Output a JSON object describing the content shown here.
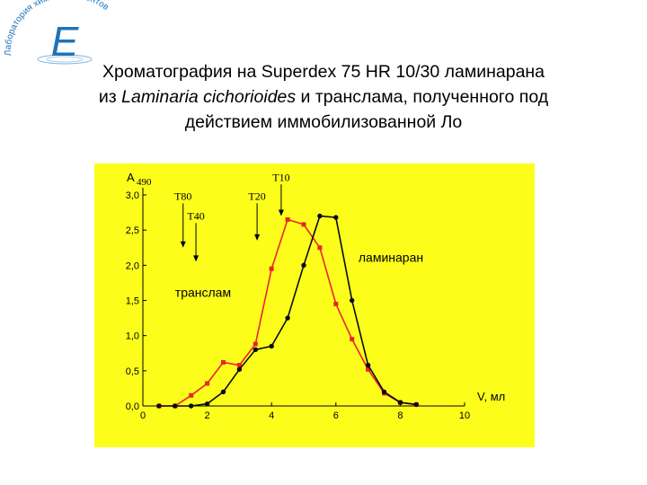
{
  "logo": {
    "text": "Лаборатория химии ферментов",
    "letter": "E",
    "accent": "#1e73b8"
  },
  "title": {
    "line1": "Хроматография  на  Superdex 75 HR 10/30 ламинарана",
    "line2_pre": "из ",
    "line2_italic": "Laminaria cichorioides",
    "line2_post": " и транслама, полученного под",
    "line3": "действием иммобилизованной Ло"
  },
  "colors": {
    "background": "#fdfd1c",
    "transl": "#e8252b",
    "laminaran": "#0a0a12"
  },
  "chart_data": {
    "type": "line",
    "ylabel": "A",
    "ylabel_sub": "490",
    "xlabel": "V, мл",
    "xlim": [
      0,
      10
    ],
    "ylim": [
      0,
      3.0
    ],
    "grid": false,
    "x_ticks": [
      {
        "v": 0,
        "label": "0"
      },
      {
        "v": 2,
        "label": "2"
      },
      {
        "v": 4,
        "label": "4"
      },
      {
        "v": 6,
        "label": "6"
      },
      {
        "v": 8,
        "label": "8"
      },
      {
        "v": 10,
        "label": "10"
      }
    ],
    "y_ticks": [
      {
        "v": 0.0,
        "label": "0,0"
      },
      {
        "v": 0.5,
        "label": "0,5"
      },
      {
        "v": 1.0,
        "label": "1,0"
      },
      {
        "v": 1.5,
        "label": "1,5"
      },
      {
        "v": 2.0,
        "label": "2,0"
      },
      {
        "v": 2.5,
        "label": "2,5"
      },
      {
        "v": 3.0,
        "label": "3,0"
      }
    ],
    "series": [
      {
        "name": "транслам",
        "color": "#e8252b",
        "marker": "square",
        "x": [
          0.5,
          1.0,
          1.5,
          2.0,
          2.5,
          3.0,
          3.5,
          4.0,
          4.5,
          5.0,
          5.5,
          6.0,
          6.5,
          7.0,
          7.5,
          8.0,
          8.5
        ],
        "y": [
          0.0,
          0.0,
          0.15,
          0.32,
          0.62,
          0.58,
          0.88,
          1.95,
          2.65,
          2.58,
          2.25,
          1.45,
          0.95,
          0.52,
          0.18,
          0.05,
          0.02
        ]
      },
      {
        "name": "ламинаран",
        "color": "#0a0a12",
        "marker": "circle",
        "x": [
          0.5,
          1.0,
          1.5,
          2.0,
          2.5,
          3.0,
          3.5,
          4.0,
          4.5,
          5.0,
          5.5,
          6.0,
          6.5,
          7.0,
          7.5,
          8.0,
          8.5
        ],
        "y": [
          0.0,
          0.0,
          0.0,
          0.03,
          0.2,
          0.52,
          0.8,
          0.85,
          1.25,
          2.0,
          2.7,
          2.68,
          1.5,
          0.58,
          0.2,
          0.05,
          0.02
        ]
      }
    ],
    "annotations": [
      {
        "label": "T10",
        "x": 4.3,
        "y_from": 3.15,
        "y_to": 2.7
      },
      {
        "label": "T20",
        "x": 3.55,
        "y_from": 2.88,
        "y_to": 2.35
      },
      {
        "label": "T80",
        "x": 1.25,
        "y_from": 2.88,
        "y_to": 2.25
      },
      {
        "label": "T40",
        "x": 1.65,
        "y_from": 2.6,
        "y_to": 2.05
      }
    ],
    "series_labels": [
      {
        "text": "ламинаран",
        "x": 6.7,
        "y": 2.05
      },
      {
        "text": "транслам",
        "x": 1.0,
        "y": 1.55
      }
    ]
  }
}
